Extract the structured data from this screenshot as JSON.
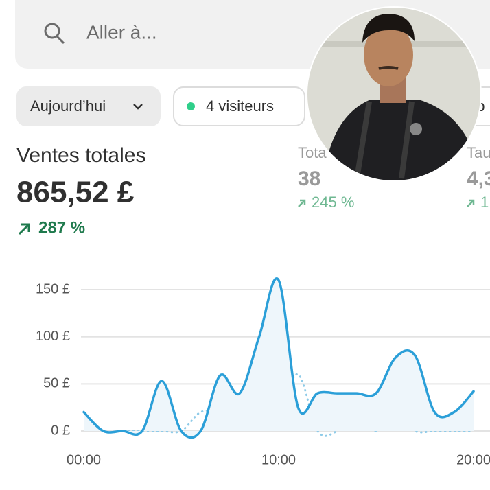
{
  "search": {
    "placeholder": "Aller à..."
  },
  "filters": {
    "date": "Aujourd’hui",
    "visitors": "4 visiteurs",
    "third": "op"
  },
  "metrics": [
    {
      "label": "Ventes totales",
      "value": "865,52 £",
      "change": "287 %"
    },
    {
      "label": "Tota",
      "value": "38",
      "change": "245 %"
    },
    {
      "label": "Tau",
      "value": "4,3",
      "change": "1"
    }
  ],
  "chart_data": {
    "type": "line",
    "x": [
      0,
      1,
      2,
      3,
      4,
      5,
      6,
      7,
      8,
      9,
      10,
      11,
      12,
      13,
      14,
      15,
      16,
      17,
      18,
      19,
      20
    ],
    "series": [
      {
        "color": "#2b9fd8",
        "values": [
          20,
          0,
          0,
          0,
          53,
          0,
          0,
          59,
          40,
          100,
          160,
          25,
          40,
          40,
          40,
          40,
          78,
          80,
          20,
          20,
          42
        ]
      },
      {
        "color": "#8fcbe8",
        "values": [
          20,
          0,
          0,
          0,
          0,
          0,
          20,
          20,
          22,
          20,
          20,
          60,
          0,
          0,
          20,
          0,
          20,
          0,
          0,
          0,
          0
        ]
      }
    ],
    "xlim": [
      0,
      20
    ],
    "xticks": [
      {
        "value": 0,
        "label": "00:00"
      },
      {
        "value": 10,
        "label": "10:00"
      },
      {
        "value": 20,
        "label": "20:00"
      }
    ],
    "ylim": [
      0,
      170
    ],
    "yticks": [
      {
        "value": 0,
        "label": "0 £"
      },
      {
        "value": 50,
        "label": "50 £"
      },
      {
        "value": 100,
        "label": "100 £"
      },
      {
        "value": 150,
        "label": "150 £"
      }
    ],
    "grid": true
  }
}
